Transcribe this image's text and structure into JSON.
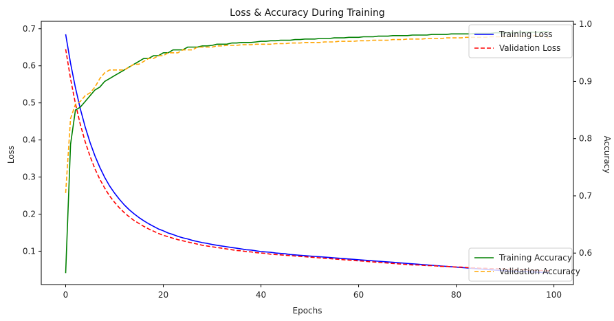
{
  "chart_data": {
    "type": "line",
    "title": "Loss & Accuracy During Training",
    "xlabel": "Epochs",
    "ylabel_left": "Loss",
    "ylabel_right": "Accuracy",
    "xlim": [
      -5,
      104
    ],
    "ylim_left": [
      0.01,
      0.72
    ],
    "ylim_right": [
      0.545,
      1.005
    ],
    "x_ticks": [
      0,
      20,
      40,
      60,
      80,
      100
    ],
    "y_left_ticks": [
      0.1,
      0.2,
      0.3,
      0.4,
      0.5,
      0.6,
      0.7
    ],
    "y_right_ticks": [
      0.6,
      0.7,
      0.8,
      0.9,
      1.0
    ],
    "grid": false,
    "legends": [
      {
        "placement": "upper-right",
        "entries": [
          "Training Loss",
          "Validation Loss"
        ]
      },
      {
        "placement": "lower-right",
        "entries": [
          "Training Accuracy",
          "Validation Accuracy"
        ]
      }
    ],
    "x": [
      0,
      1,
      2,
      3,
      4,
      5,
      6,
      7,
      8,
      9,
      10,
      11,
      12,
      13,
      14,
      15,
      16,
      17,
      18,
      19,
      20,
      21,
      22,
      23,
      24,
      25,
      26,
      27,
      28,
      29,
      30,
      31,
      32,
      33,
      34,
      35,
      36,
      37,
      38,
      39,
      40,
      41,
      42,
      43,
      44,
      45,
      46,
      47,
      48,
      49,
      50,
      51,
      52,
      53,
      54,
      55,
      56,
      57,
      58,
      59,
      60,
      61,
      62,
      63,
      64,
      65,
      66,
      67,
      68,
      69,
      70,
      71,
      72,
      73,
      74,
      75,
      76,
      77,
      78,
      79,
      80,
      81,
      82,
      83,
      84,
      85,
      86,
      87,
      88,
      89,
      90,
      91,
      92,
      93,
      94,
      95,
      96,
      97,
      98,
      99
    ],
    "series": [
      {
        "name": "Training Loss",
        "axis": "left",
        "color": "#0000ff",
        "dash": "solid",
        "values": [
          0.685,
          0.607,
          0.541,
          0.484,
          0.435,
          0.393,
          0.357,
          0.326,
          0.299,
          0.276,
          0.257,
          0.24,
          0.225,
          0.212,
          0.201,
          0.191,
          0.182,
          0.174,
          0.167,
          0.16,
          0.155,
          0.149,
          0.145,
          0.14,
          0.136,
          0.133,
          0.129,
          0.126,
          0.123,
          0.121,
          0.118,
          0.116,
          0.114,
          0.112,
          0.11,
          0.108,
          0.106,
          0.104,
          0.103,
          0.101,
          0.099,
          0.098,
          0.097,
          0.095,
          0.094,
          0.093,
          0.091,
          0.09,
          0.089,
          0.088,
          0.087,
          0.086,
          0.085,
          0.084,
          0.083,
          0.082,
          0.081,
          0.08,
          0.079,
          0.078,
          0.077,
          0.076,
          0.075,
          0.074,
          0.073,
          0.072,
          0.071,
          0.07,
          0.069,
          0.068,
          0.067,
          0.066,
          0.065,
          0.064,
          0.063,
          0.062,
          0.061,
          0.06,
          0.059,
          0.058,
          0.057,
          0.056,
          0.055,
          0.054,
          0.053,
          0.052,
          0.051,
          0.05,
          0.049,
          0.048,
          0.047,
          0.046,
          0.046,
          0.045,
          0.045,
          0.044,
          0.044,
          0.043,
          0.043,
          0.042
        ]
      },
      {
        "name": "Validation Loss",
        "axis": "left",
        "color": "#ff0000",
        "dash": "dashed",
        "values": [
          0.645,
          0.565,
          0.498,
          0.442,
          0.395,
          0.356,
          0.322,
          0.294,
          0.27,
          0.249,
          0.232,
          0.217,
          0.204,
          0.193,
          0.183,
          0.175,
          0.167,
          0.16,
          0.154,
          0.148,
          0.143,
          0.139,
          0.135,
          0.131,
          0.128,
          0.125,
          0.122,
          0.119,
          0.116,
          0.114,
          0.112,
          0.11,
          0.108,
          0.106,
          0.104,
          0.102,
          0.101,
          0.099,
          0.098,
          0.096,
          0.095,
          0.094,
          0.092,
          0.091,
          0.09,
          0.089,
          0.088,
          0.087,
          0.086,
          0.085,
          0.084,
          0.083,
          0.082,
          0.081,
          0.08,
          0.079,
          0.078,
          0.077,
          0.076,
          0.075,
          0.074,
          0.073,
          0.072,
          0.071,
          0.07,
          0.069,
          0.068,
          0.067,
          0.066,
          0.065,
          0.064,
          0.063,
          0.063,
          0.062,
          0.061,
          0.061,
          0.06,
          0.059,
          0.059,
          0.058,
          0.057,
          0.057,
          0.056,
          0.055,
          0.055,
          0.054,
          0.054,
          0.053,
          0.053,
          0.052,
          0.052,
          0.051,
          0.051,
          0.05,
          0.05,
          0.049,
          0.049,
          0.048,
          0.048,
          0.047
        ]
      },
      {
        "name": "Training Accuracy",
        "axis": "right",
        "color": "#008000",
        "dash": "solid",
        "values": [
          0.565,
          0.79,
          0.85,
          0.855,
          0.865,
          0.875,
          0.885,
          0.89,
          0.9,
          0.905,
          0.91,
          0.915,
          0.92,
          0.925,
          0.93,
          0.935,
          0.94,
          0.94,
          0.945,
          0.945,
          0.95,
          0.95,
          0.955,
          0.955,
          0.955,
          0.96,
          0.96,
          0.96,
          0.962,
          0.962,
          0.963,
          0.965,
          0.965,
          0.965,
          0.967,
          0.967,
          0.968,
          0.968,
          0.968,
          0.969,
          0.97,
          0.97,
          0.971,
          0.971,
          0.972,
          0.972,
          0.972,
          0.973,
          0.973,
          0.974,
          0.974,
          0.974,
          0.975,
          0.975,
          0.975,
          0.976,
          0.976,
          0.976,
          0.977,
          0.977,
          0.977,
          0.978,
          0.978,
          0.978,
          0.979,
          0.979,
          0.979,
          0.98,
          0.98,
          0.98,
          0.98,
          0.981,
          0.981,
          0.981,
          0.981,
          0.982,
          0.982,
          0.982,
          0.982,
          0.983,
          0.983,
          0.983,
          0.983,
          0.983,
          0.984,
          0.984,
          0.984,
          0.984,
          0.985,
          0.985,
          0.985,
          0.985,
          0.985,
          0.986,
          0.986,
          0.986,
          0.986,
          0.986,
          0.987,
          0.987
        ]
      },
      {
        "name": "Validation Accuracy",
        "axis": "right",
        "color": "#ffa500",
        "dash": "dashed",
        "values": [
          0.705,
          0.835,
          0.86,
          0.865,
          0.875,
          0.88,
          0.89,
          0.905,
          0.915,
          0.92,
          0.92,
          0.92,
          0.92,
          0.925,
          0.93,
          0.93,
          0.935,
          0.94,
          0.94,
          0.945,
          0.945,
          0.95,
          0.95,
          0.95,
          0.955,
          0.955,
          0.955,
          0.96,
          0.96,
          0.96,
          0.96,
          0.962,
          0.962,
          0.963,
          0.963,
          0.963,
          0.964,
          0.964,
          0.964,
          0.965,
          0.965,
          0.965,
          0.965,
          0.966,
          0.966,
          0.966,
          0.967,
          0.967,
          0.967,
          0.968,
          0.968,
          0.968,
          0.968,
          0.969,
          0.969,
          0.969,
          0.97,
          0.97,
          0.97,
          0.97,
          0.971,
          0.971,
          0.971,
          0.972,
          0.972,
          0.972,
          0.972,
          0.973,
          0.973,
          0.973,
          0.974,
          0.974,
          0.974,
          0.974,
          0.975,
          0.975,
          0.975,
          0.975,
          0.976,
          0.976,
          0.976,
          0.976,
          0.977,
          0.977,
          0.977,
          0.977,
          0.977,
          0.978,
          0.978,
          0.978,
          0.978,
          0.979,
          0.979,
          0.979,
          0.979,
          0.979,
          0.98,
          0.98,
          0.98,
          0.975
        ]
      }
    ]
  }
}
